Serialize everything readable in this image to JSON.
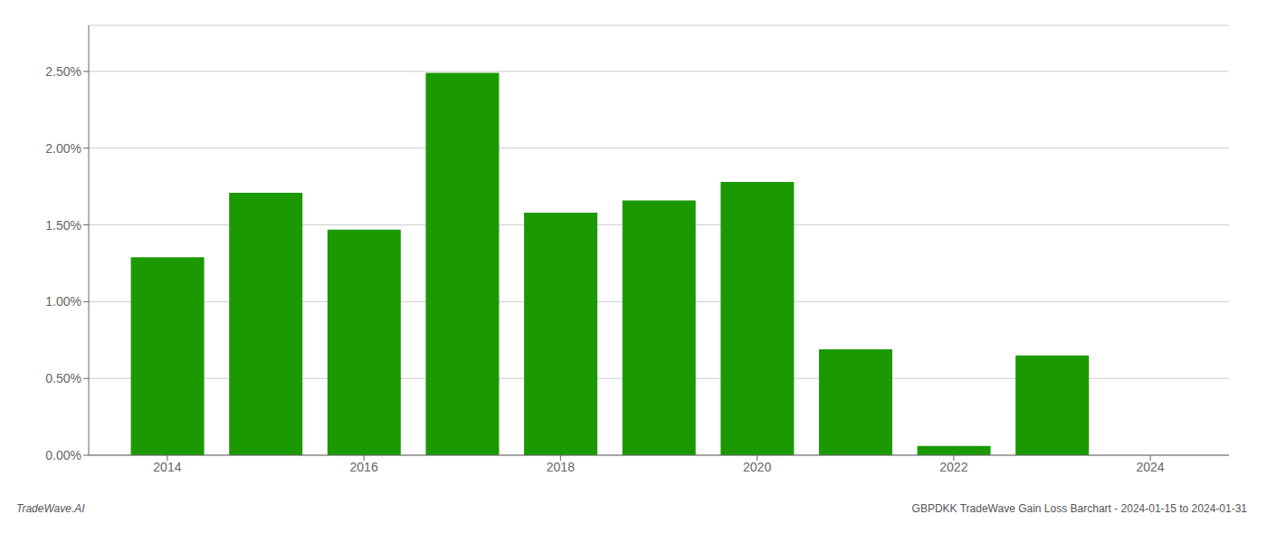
{
  "chart_data": {
    "type": "bar",
    "x": [
      2014,
      2015,
      2016,
      2017,
      2018,
      2019,
      2020,
      2021,
      2022,
      2023
    ],
    "values": [
      0.0129,
      0.0171,
      0.0147,
      0.0249,
      0.0158,
      0.0166,
      0.0178,
      0.0069,
      0.0006,
      0.0065
    ],
    "color": "#1a9a00",
    "xlim": [
      2013.2,
      2024.8
    ],
    "xticks": [
      2014,
      2016,
      2018,
      2020,
      2022,
      2024
    ],
    "ylim": [
      0,
      0.028
    ],
    "yticks": [
      {
        "value": 0.0,
        "label": "0.00%"
      },
      {
        "value": 0.005,
        "label": "0.50%"
      },
      {
        "value": 0.01,
        "label": "1.00%"
      },
      {
        "value": 0.015,
        "label": "1.50%"
      },
      {
        "value": 0.02,
        "label": "2.00%"
      },
      {
        "value": 0.025,
        "label": "2.50%"
      }
    ],
    "grid": true,
    "annotations": [
      "TradeWave.AI",
      "GBPDKK TradeWave Gain Loss Barchart - 2024-01-15 to 2024-01-31"
    ]
  }
}
